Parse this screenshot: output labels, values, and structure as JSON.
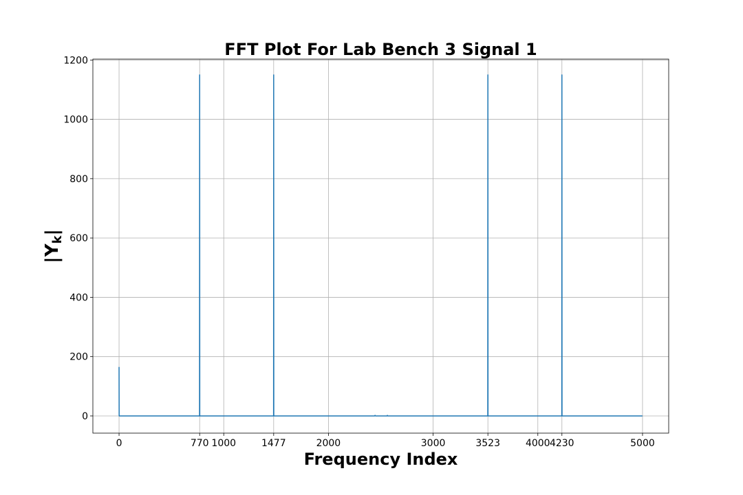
{
  "chart_data": {
    "type": "line",
    "title": "FFT Plot For Lab Bench 3 Signal 1",
    "xlabel": "Frequency Index",
    "ylabel": "|Y",
    "ylabel_subscript": "k",
    "ylabel_close": "|",
    "xlim": [
      -250,
      5250
    ],
    "ylim": [
      -58,
      1203
    ],
    "grid": true,
    "x_ticks": [
      0,
      770,
      1000,
      1477,
      2000,
      3000,
      3523,
      4000,
      4230,
      5000
    ],
    "x_tick_labels": [
      "0",
      "770",
      "1000",
      "1477",
      "2000",
      "3000",
      "3523",
      "4000",
      "4230",
      "5000"
    ],
    "y_ticks": [
      0,
      200,
      400,
      600,
      800,
      1000,
      1200
    ],
    "y_tick_labels": [
      "0",
      "200",
      "400",
      "600",
      "800",
      "1000",
      "1200"
    ],
    "series": [
      {
        "color": "#1f77b4",
        "points": [
          [
            0,
            165
          ],
          [
            1,
            2
          ],
          [
            2,
            0
          ],
          [
            768,
            0
          ],
          [
            769,
            3
          ],
          [
            770,
            1150
          ],
          [
            771,
            3
          ],
          [
            772,
            0
          ],
          [
            1475,
            0
          ],
          [
            1476,
            3
          ],
          [
            1477,
            1150
          ],
          [
            1478,
            3
          ],
          [
            1479,
            0
          ],
          [
            2440,
            0
          ],
          [
            2445,
            2
          ],
          [
            2450,
            0
          ],
          [
            2560,
            0
          ],
          [
            2563,
            2
          ],
          [
            2566,
            0
          ],
          [
            3521,
            0
          ],
          [
            3522,
            3
          ],
          [
            3523,
            1150
          ],
          [
            3524,
            3
          ],
          [
            3525,
            0
          ],
          [
            4228,
            0
          ],
          [
            4229,
            3
          ],
          [
            4230,
            1150
          ],
          [
            4231,
            3
          ],
          [
            4232,
            0
          ],
          [
            4999,
            0
          ]
        ]
      }
    ]
  }
}
